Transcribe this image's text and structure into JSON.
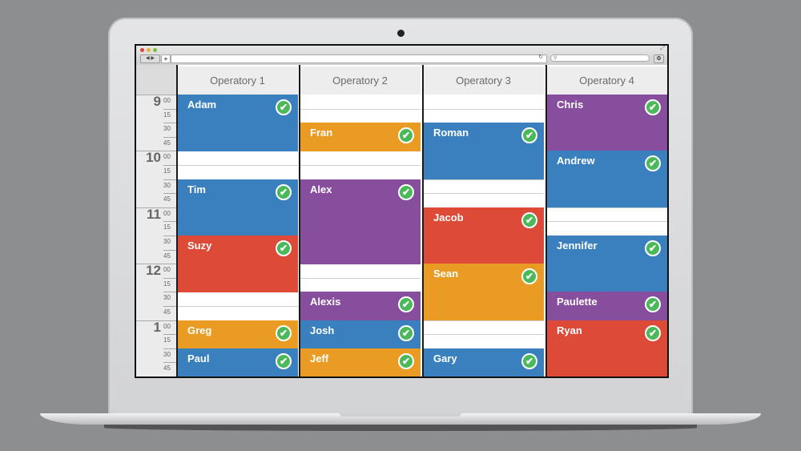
{
  "browser": {
    "url": "",
    "search_icon": "magnifier-icon",
    "new_tab": "+",
    "back": "◀",
    "forward": "▶"
  },
  "colors": {
    "blue": "#3a80bf",
    "orange": "#ea9b24",
    "purple": "#884e9e",
    "red": "#dd4a37",
    "confirmed": "#4bb85a"
  },
  "time_labels": {
    "hours": [
      "9",
      "10",
      "11",
      "12",
      "1"
    ],
    "minutes": [
      "00",
      "15",
      "30",
      "45"
    ]
  },
  "columns": [
    {
      "label": "Operatory 1",
      "appointments": [
        {
          "name": "Adam",
          "start": "9:00",
          "end": "10:00",
          "color": "blue",
          "status": "confirmed"
        },
        {
          "name": "Tim",
          "start": "10:30",
          "end": "11:30",
          "color": "blue",
          "status": "confirmed"
        },
        {
          "name": "Suzy",
          "start": "11:30",
          "end": "12:30",
          "color": "red",
          "status": "confirmed"
        },
        {
          "name": "Greg",
          "start": "1:00",
          "end": "1:30",
          "color": "orange",
          "status": "confirmed"
        },
        {
          "name": "Paul",
          "start": "1:30",
          "end": "2:00",
          "color": "blue",
          "status": "confirmed"
        }
      ]
    },
    {
      "label": "Operatory 2",
      "appointments": [
        {
          "name": "Fran",
          "start": "9:30",
          "end": "10:00",
          "color": "orange",
          "status": "confirmed"
        },
        {
          "name": "Alex",
          "start": "10:30",
          "end": "12:00",
          "color": "purple",
          "status": "confirmed"
        },
        {
          "name": "Alexis",
          "start": "12:30",
          "end": "1:00",
          "color": "purple",
          "status": "confirmed"
        },
        {
          "name": "Josh",
          "start": "1:00",
          "end": "1:30",
          "color": "blue",
          "status": "confirmed"
        },
        {
          "name": "Jeff",
          "start": "1:30",
          "end": "2:00",
          "color": "orange",
          "status": "confirmed"
        }
      ]
    },
    {
      "label": "Operatory 3",
      "appointments": [
        {
          "name": "Roman",
          "start": "9:30",
          "end": "10:30",
          "color": "blue",
          "status": "confirmed"
        },
        {
          "name": "Jacob",
          "start": "11:00",
          "end": "12:00",
          "color": "red",
          "status": "confirmed"
        },
        {
          "name": "Sean",
          "start": "12:00",
          "end": "1:00",
          "color": "orange",
          "status": "confirmed"
        },
        {
          "name": "Gary",
          "start": "1:30",
          "end": "2:00",
          "color": "blue",
          "status": "confirmed"
        }
      ]
    },
    {
      "label": "Operatory 4",
      "appointments": [
        {
          "name": "Chris",
          "start": "9:00",
          "end": "10:00",
          "color": "purple",
          "status": "confirmed"
        },
        {
          "name": "Andrew",
          "start": "10:00",
          "end": "11:00",
          "color": "blue",
          "status": "confirmed"
        },
        {
          "name": "Jennifer",
          "start": "11:30",
          "end": "12:30",
          "color": "blue",
          "status": "confirmed"
        },
        {
          "name": "Paulette",
          "start": "12:30",
          "end": "1:00",
          "color": "purple",
          "status": "confirmed"
        },
        {
          "name": "Ryan",
          "start": "1:00",
          "end": "2:00",
          "color": "red",
          "status": "confirmed"
        }
      ]
    }
  ]
}
